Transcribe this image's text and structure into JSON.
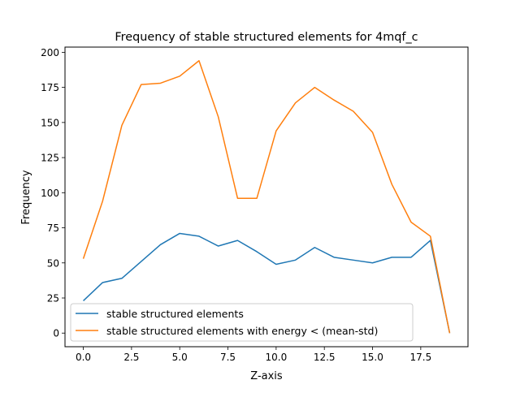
{
  "chart_data": {
    "type": "line",
    "title": "Frequency of stable structured elements for 4mqf_c",
    "xlabel": "Z-axis",
    "ylabel": "Frequency",
    "xlim": [
      -0.95,
      19.95
    ],
    "ylim": [
      -9.7,
      203.7
    ],
    "xticks": [
      0.0,
      2.5,
      5.0,
      7.5,
      10.0,
      12.5,
      15.0,
      17.5
    ],
    "xtick_labels": [
      "0.0",
      "2.5",
      "5.0",
      "7.5",
      "10.0",
      "12.5",
      "15.0",
      "17.5"
    ],
    "yticks": [
      0,
      25,
      50,
      75,
      100,
      125,
      150,
      175,
      200
    ],
    "ytick_labels": [
      "0",
      "25",
      "50",
      "75",
      "100",
      "125",
      "150",
      "175",
      "200"
    ],
    "grid": false,
    "legend_position": "lower-left",
    "x": [
      0,
      1,
      2,
      3,
      4,
      5,
      6,
      7,
      8,
      9,
      10,
      11,
      12,
      13,
      14,
      15,
      16,
      17,
      18,
      19
    ],
    "series": [
      {
        "name": "stable structured elements",
        "color": "#1f77b4",
        "values": [
          23,
          36,
          39,
          51,
          63,
          71,
          69,
          62,
          66,
          58,
          49,
          52,
          61,
          54,
          52,
          50,
          54,
          54,
          66,
          0
        ]
      },
      {
        "name": "stable structured elements with energy < (mean-std)",
        "color": "#ff7f0e",
        "values": [
          53,
          94,
          148,
          177,
          178,
          183,
          194,
          154,
          96,
          96,
          144,
          164,
          175,
          166,
          158,
          143,
          106,
          79,
          69,
          0
        ]
      }
    ]
  }
}
